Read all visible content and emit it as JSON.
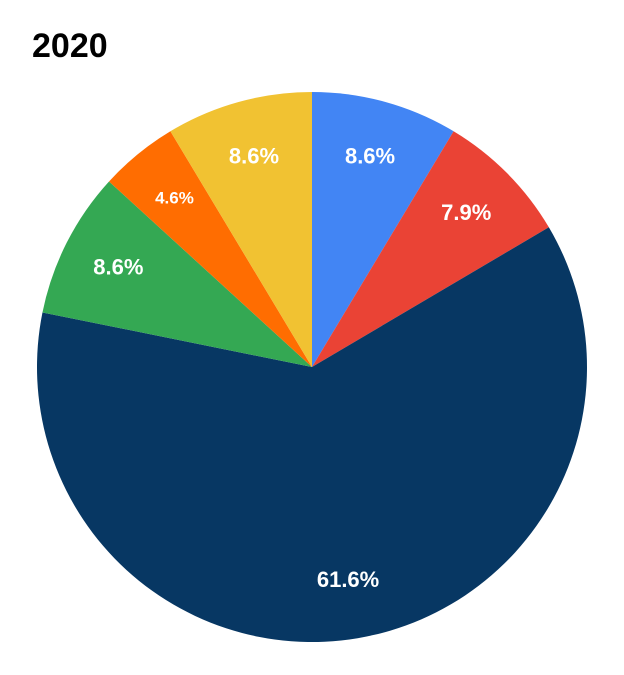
{
  "chart_data": {
    "type": "pie",
    "title": "2020",
    "values": [
      8.6,
      7.9,
      61.6,
      8.6,
      4.6,
      8.6
    ],
    "value_labels": [
      "8.6%",
      "7.9%",
      "61.6%",
      "8.6%",
      "4.6%",
      "8.6%"
    ],
    "colors": [
      "#4285f4",
      "#ea4335",
      "#073763",
      "#34a853",
      "#ff6d01",
      "#f1c232"
    ]
  }
}
